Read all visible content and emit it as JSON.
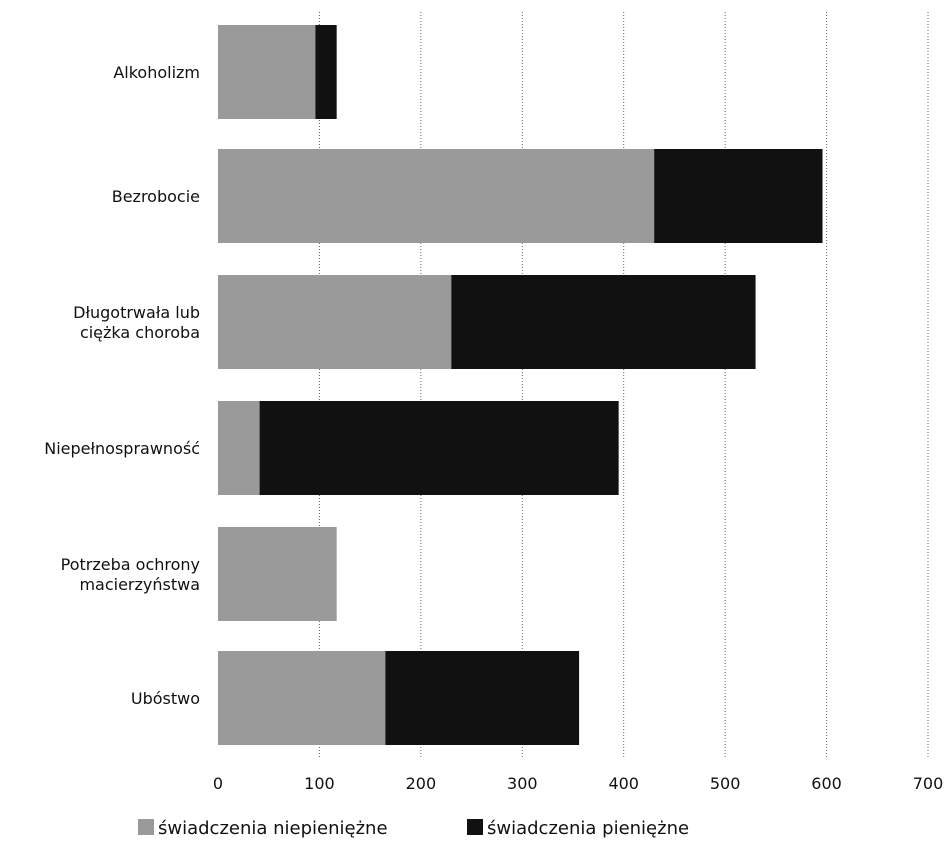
{
  "chart_data": {
    "type": "bar",
    "orientation": "horizontal",
    "stacked": true,
    "categories": [
      [
        "Alkoholizm"
      ],
      [
        "Bezrobocie"
      ],
      [
        "Długotrwała lub",
        "ciężka choroba"
      ],
      [
        "Niepełnosprawność"
      ],
      [
        "Potrzeba ochrony",
        "macierzyństwa"
      ],
      [
        "Ubóstwo"
      ]
    ],
    "series": [
      {
        "name": "świadczenia niepieniężne",
        "color": "#9a9a9a",
        "values": [
          96,
          430,
          230,
          41,
          117,
          165
        ]
      },
      {
        "name": "świadczenia pieniężne",
        "color": "#111111",
        "values": [
          21,
          166,
          300,
          354,
          0,
          191
        ]
      }
    ],
    "xlim": [
      0,
      700
    ],
    "xticks": [
      "0",
      "100",
      "200",
      "300",
      "400",
      "500",
      "600",
      "700"
    ],
    "grid": "vertical",
    "legend_position": "bottom",
    "title": "",
    "xlabel": "",
    "ylabel": ""
  }
}
